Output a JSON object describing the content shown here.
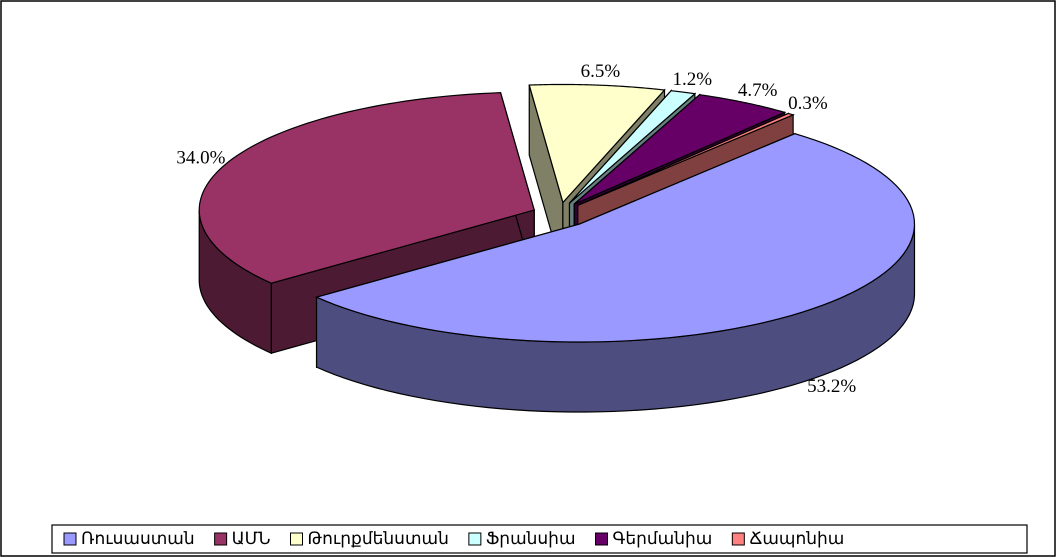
{
  "chart_data": {
    "type": "pie3d",
    "categories": [
      "Ռուսաստան",
      "ԱՄՆ",
      "Թուրքմենստան",
      "Ֆրանսիա",
      "Գերմանիա",
      "Ճապոնիա"
    ],
    "values": [
      53.2,
      34.0,
      6.5,
      1.2,
      4.7,
      0.3
    ],
    "value_labels": [
      "53.2%",
      "34.0%",
      "6.5%",
      "1.2%",
      "4.7%",
      "0.3%"
    ],
    "colors": [
      "#9999ff",
      "#993366",
      "#ffffcc",
      "#ccffff",
      "#660066",
      "#ff8080"
    ],
    "legend": "bottom"
  }
}
